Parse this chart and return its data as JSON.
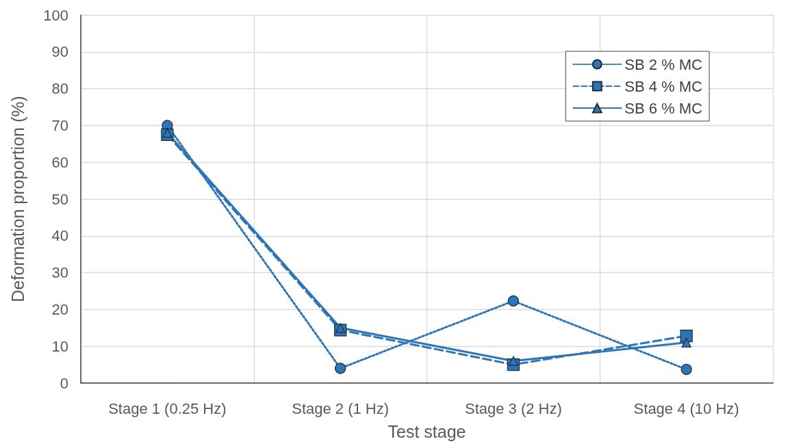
{
  "chart_data": {
    "type": "line",
    "xlabel": "Test stage",
    "ylabel": "Deformation proportion (%)",
    "categories": [
      "Stage 1 (0.25 Hz)",
      "Stage 2 (1 Hz)",
      "Stage 3 (2 Hz)",
      "Stage 4 (10 Hz)"
    ],
    "series": [
      {
        "name": "SB 2 % MC",
        "color": "#2e75b6",
        "values": [
          70,
          4,
          22.3,
          3.7
        ],
        "marker": "circle",
        "line_style": "dotted"
      },
      {
        "name": "SB 4 % MC",
        "color": "#2e75b6",
        "values": [
          67.5,
          14.4,
          5,
          12.8
        ],
        "marker": "square",
        "line_style": "dashed"
      },
      {
        "name": "SB 6 % MC",
        "color": "#2e75b6",
        "values": [
          68,
          15,
          6,
          11
        ],
        "marker": "triangle",
        "line_style": "solid"
      }
    ],
    "ylim": [
      0,
      100
    ],
    "yticks": [
      0,
      10,
      20,
      30,
      40,
      50,
      60,
      70,
      80,
      90,
      100
    ],
    "grid": true,
    "legend": "top right"
  }
}
